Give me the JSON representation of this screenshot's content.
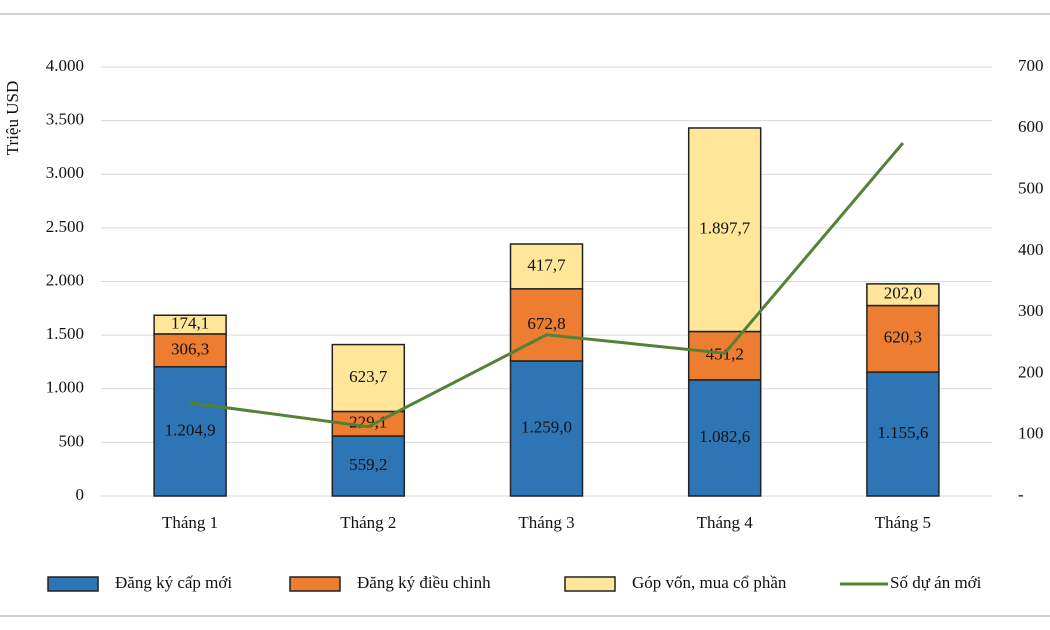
{
  "chart_data": {
    "type": "bar",
    "stacked": true,
    "y_label": "Triệu USD",
    "categories": [
      "Tháng 1",
      "Tháng 2",
      "Tháng 3",
      "Tháng 4",
      "Tháng 5"
    ],
    "series": [
      {
        "name": "Đăng ký cấp mới",
        "color": "#2e75b6",
        "values": [
          1204.9,
          559.2,
          1259.0,
          1082.6,
          1155.6
        ],
        "value_labels": [
          "1.204,9",
          "559,2",
          "1.259,0",
          "1.082,6",
          "1.155,6"
        ]
      },
      {
        "name": "Đăng ký điều chinh",
        "color": "#ed7d31",
        "values": [
          306.3,
          229.1,
          672.8,
          451.2,
          620.3
        ],
        "value_labels": [
          "306,3",
          "229,1",
          "672,8",
          "451,2",
          "620,3"
        ]
      },
      {
        "name": "Góp vốn, mua cổ phần",
        "color": "#ffe699",
        "values": [
          174.1,
          623.7,
          417.7,
          1897.7,
          202.0
        ],
        "value_labels": [
          "174,1",
          "623,7",
          "417,7",
          "1.897,7",
          "202,0"
        ]
      },
      {
        "name": "Số dự án mới",
        "color": "#548235",
        "type": "line",
        "axis": "y2",
        "values": [
          152,
          113,
          263,
          233,
          576
        ]
      }
    ],
    "ylim": [
      0,
      4000
    ],
    "yticks": [
      0,
      500,
      {
        "value": 1000,
        "label": "1.000"
      },
      {
        "value": 1500,
        "label": "1.500"
      },
      {
        "value": 2000,
        "label": "2.000"
      },
      {
        "value": 2500,
        "label": "2.500"
      },
      {
        "value": 3000,
        "label": "3.000"
      },
      {
        "value": 3500,
        "label": "3.500"
      },
      {
        "value": 4000,
        "label": "4.000"
      }
    ],
    "y2lim": [
      0,
      700
    ],
    "y2ticks": [
      {
        "value": 0,
        "label": "-"
      },
      100,
      200,
      300,
      400,
      500,
      600,
      700
    ],
    "grid": true,
    "legend": "bottom"
  }
}
